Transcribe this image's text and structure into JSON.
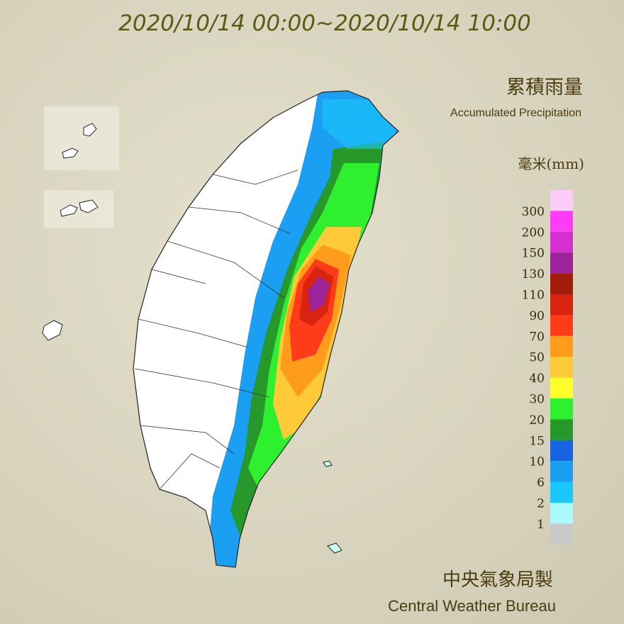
{
  "title": "2020/10/14 00:00~2020/10/14 10:00",
  "legend": {
    "title": "累積雨量",
    "subtitle": "Accumulated Precipitation",
    "unit": "毫米(mm)",
    "labels": [
      300,
      200,
      150,
      130,
      110,
      90,
      70,
      50,
      40,
      30,
      20,
      15,
      10,
      6,
      2,
      1
    ],
    "colors": [
      "#fbcdf8",
      "#ff3cf5",
      "#d630d2",
      "#9c2399",
      "#a21c0c",
      "#d8240e",
      "#ff3b1a",
      "#ff9c1c",
      "#ffca38",
      "#ffff2a",
      "#2ef02e",
      "#26992a",
      "#1862e4",
      "#1b9ff3",
      "#1ac8fd",
      "#aaf9fd",
      "#c9c9c9"
    ]
  },
  "footer": {
    "chinese": "中央氣象局製",
    "english": "Central Weather Bureau"
  }
}
